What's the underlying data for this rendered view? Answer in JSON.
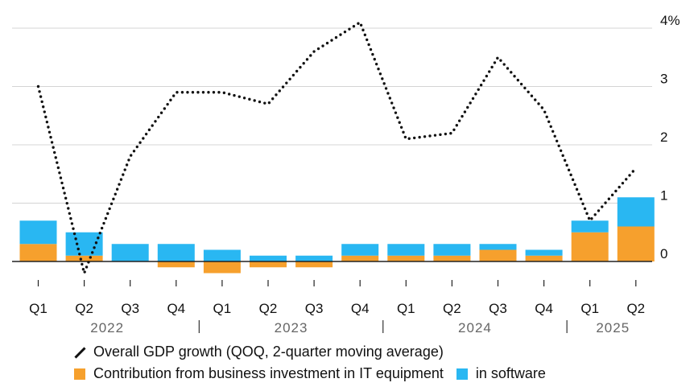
{
  "chart_data": {
    "type": "bar",
    "categories": [
      "Q1",
      "Q2",
      "Q3",
      "Q4",
      "Q1",
      "Q2",
      "Q3",
      "Q4",
      "Q1",
      "Q2",
      "Q3",
      "Q4",
      "Q1",
      "Q2"
    ],
    "year_labels": [
      "2022",
      "2023",
      "2024",
      "2025"
    ],
    "y_tick_labels": [
      "4%",
      "3",
      "2",
      "1",
      "0"
    ],
    "ylim": [
      -0.3,
      4
    ],
    "series": [
      {
        "name": "Contribution from business investment in IT equipment",
        "kind": "bar",
        "color": "#F6A02D",
        "values": [
          0.3,
          0.1,
          0.0,
          -0.1,
          -0.2,
          -0.1,
          -0.1,
          0.1,
          0.1,
          0.1,
          0.2,
          0.1,
          0.5,
          0.6
        ]
      },
      {
        "name": "in software",
        "kind": "bar",
        "color": "#29B7F2",
        "values": [
          0.4,
          0.4,
          0.3,
          0.3,
          0.2,
          0.1,
          0.1,
          0.2,
          0.2,
          0.2,
          0.1,
          0.1,
          0.2,
          0.5
        ]
      },
      {
        "name": "Overall GDP growth (QOQ, 2-quarter moving average)",
        "kind": "line",
        "color": "#111111",
        "values": [
          3.0,
          -0.2,
          1.8,
          2.9,
          2.9,
          2.7,
          3.6,
          4.1,
          2.1,
          2.2,
          3.5,
          2.6,
          0.7,
          1.6
        ]
      }
    ],
    "grid": true
  }
}
